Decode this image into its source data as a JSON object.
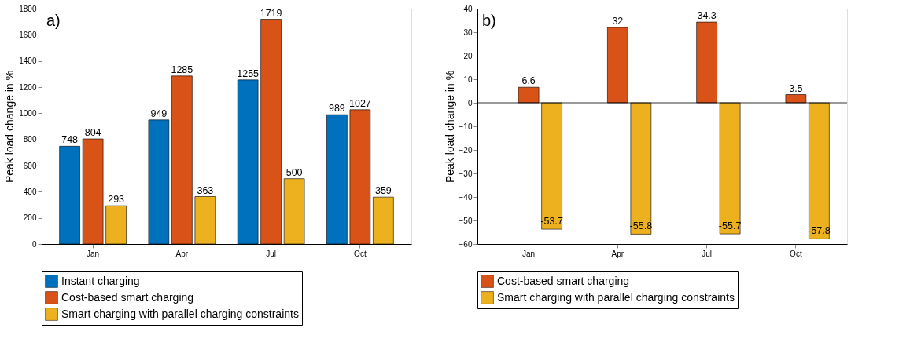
{
  "chart_data": [
    {
      "type": "bar",
      "ylabel": "Peak load change in %",
      "annotations": [
        "a)"
      ],
      "categories": [
        "Jan",
        "Apr",
        "Jul",
        "Oct"
      ],
      "series": [
        {
          "name": "Instant charging",
          "color": "#0072bd",
          "values": [
            748,
            949,
            1255,
            989
          ]
        },
        {
          "name": "Cost-based smart charging",
          "color": "#d95319",
          "values": [
            804,
            1285,
            1719,
            1027
          ]
        },
        {
          "name": "Smart charging with parallel charging constraints",
          "color": "#edb120",
          "values": [
            293,
            363,
            500,
            359
          ]
        }
      ],
      "ylim": [
        0,
        1800
      ],
      "yticks": [
        0,
        200,
        400,
        600,
        800,
        1000,
        1200,
        1400,
        1600,
        1800
      ],
      "data_labels": true,
      "legend": "bottom",
      "grid": false
    },
    {
      "type": "bar",
      "ylabel": "Peak load change in %",
      "annotations": [
        "b)"
      ],
      "categories": [
        "Jan",
        "Apr",
        "Jul",
        "Oct"
      ],
      "series": [
        {
          "name": "Cost-based smart charging",
          "color": "#d95319",
          "values": [
            6.6,
            32,
            34.3,
            3.5
          ]
        },
        {
          "name": "Smart charging with parallel charging constraints",
          "color": "#edb120",
          "values": [
            -53.7,
            -55.8,
            -55.7,
            -57.8
          ]
        }
      ],
      "ylim": [
        -60,
        40
      ],
      "yticks": [
        -60,
        -50,
        -40,
        -30,
        -20,
        -10,
        0,
        10,
        20,
        30,
        40
      ],
      "ref_lines": [
        {
          "axis": "y",
          "value": 0
        }
      ],
      "data_labels": true,
      "legend": "bottom",
      "grid": false
    }
  ]
}
